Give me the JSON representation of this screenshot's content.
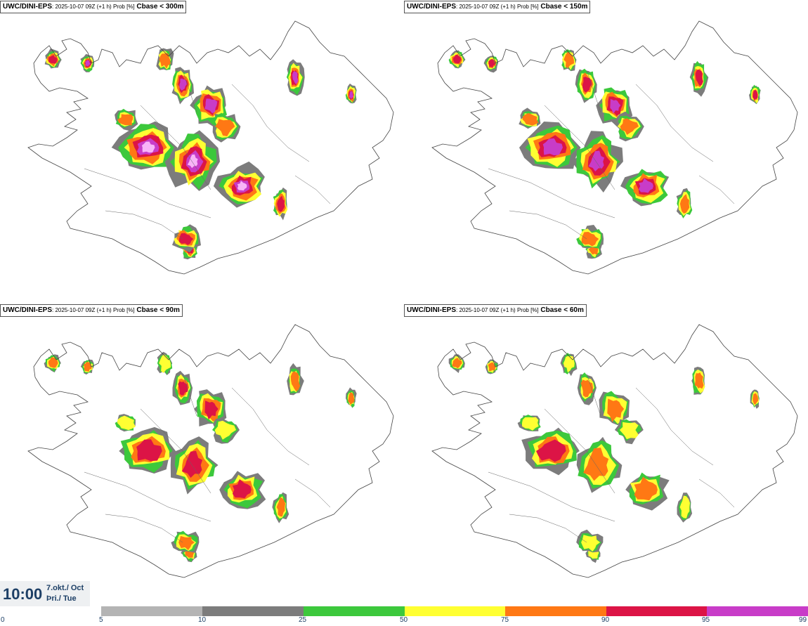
{
  "panels": [
    {
      "model": "UWC/DINI-EPS",
      "meta": ": 2025-10-07 09Z (+1 h) Prob [%]",
      "variable": "Cbase < 300m"
    },
    {
      "model": "UWC/DINI-EPS",
      "meta": ": 2025-10-07 09Z (+1 h) Prob [%]",
      "variable": "Cbase < 150m"
    },
    {
      "model": "UWC/DINI-EPS",
      "meta": ": 2025-10-07 09Z (+1 h) Prob [%]",
      "variable": "Cbase < 90m"
    },
    {
      "model": "UWC/DINI-EPS",
      "meta": ": 2025-10-07 09Z (+1 h) Prob [%]",
      "variable": "Cbase < 60m"
    }
  ],
  "time": {
    "clock": "10:00",
    "date": "7.okt./ Oct",
    "weekday": "Þri./ Tue"
  },
  "legend": {
    "ticks": [
      "0",
      "5",
      "10",
      "25",
      "50",
      "75",
      "90",
      "95",
      "99"
    ],
    "colors": [
      "#b4b4b4",
      "#7c7c7c",
      "#3cc83c",
      "#ffff32",
      "#ff7814",
      "#dc1446",
      "#c83cc8",
      "#f8b4f8"
    ]
  }
}
